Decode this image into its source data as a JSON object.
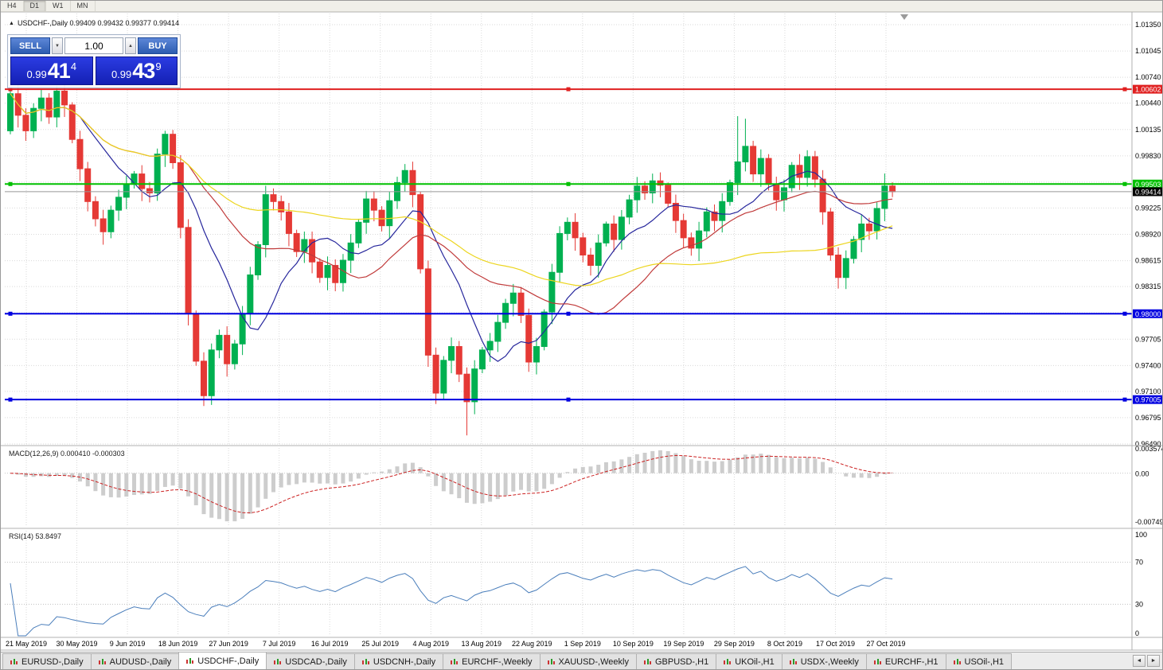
{
  "icons": {
    "symbol_marker": "▲",
    "spin_down": "▼",
    "spin_up": "▲",
    "scroll_left": "◄",
    "scroll_right": "►"
  },
  "toolbar": {
    "timeframes": [
      "H4",
      "D1",
      "W1",
      "MN"
    ],
    "active": "D1"
  },
  "chart_header": {
    "symbol_line": "USDCHF-,Daily 0.99409 0.99432 0.99377 0.99414"
  },
  "trade_panel": {
    "sell_label": "SELL",
    "buy_label": "BUY",
    "volume": "1.00",
    "bid": {
      "prefix": "0.99",
      "big": "41",
      "sup": "4"
    },
    "ask": {
      "prefix": "0.99",
      "big": "43",
      "sup": "9"
    }
  },
  "chart_data": {
    "type": "candlestick",
    "symbol": "USDCHF",
    "timeframe": "Daily",
    "ohlc_display": {
      "open": 0.99409,
      "high": 0.99432,
      "low": 0.99377,
      "close": 0.99414
    },
    "style": {
      "bull": "#00b050",
      "bear": "#e53935",
      "grid": "#dadada",
      "frame": "#b0b0b0",
      "histogram": "#cdcdcd",
      "signal": "#cc2222",
      "rsi_line": "#4a7ebb",
      "current_line": "#999999"
    },
    "price_axis": [
      {
        "value": 1.0135,
        "label": "1.01350"
      },
      {
        "value": 1.01045,
        "label": "1.01045"
      },
      {
        "value": 1.0074,
        "label": "1.00740"
      },
      {
        "value": 1.0044,
        "label": "1.00440"
      },
      {
        "value": 1.00135,
        "label": "1.00135"
      },
      {
        "value": 0.9983,
        "label": "0.99830"
      },
      {
        "value": 0.99525,
        "label": ""
      },
      {
        "value": 0.99225,
        "label": "0.99225"
      },
      {
        "value": 0.9892,
        "label": "0.98920"
      },
      {
        "value": 0.98615,
        "label": "0.98615"
      },
      {
        "value": 0.98315,
        "label": "0.98315"
      },
      {
        "value": 0.9801,
        "label": "0.98010"
      },
      {
        "value": 0.97705,
        "label": "0.97705"
      },
      {
        "value": 0.974,
        "label": "0.97400"
      },
      {
        "value": 0.971,
        "label": "0.97100"
      },
      {
        "value": 0.96795,
        "label": "0.96795"
      },
      {
        "value": 0.9649,
        "label": "0.96490"
      }
    ],
    "x_labels": [
      "21 May 2019",
      "30 May 2019",
      "9 Jun 2019",
      "18 Jun 2019",
      "27 Jun 2019",
      "7 Jul 2019",
      "16 Jul 2019",
      "25 Jul 2019",
      "4 Aug 2019",
      "13 Aug 2019",
      "22 Aug 2019",
      "1 Sep 2019",
      "10 Sep 2019",
      "19 Sep 2019",
      "29 Sep 2019",
      "8 Oct 2019",
      "17 Oct 2019",
      "27 Oct 2019"
    ],
    "first_open": 1.0012,
    "closes": [
      1.0055,
      1.003,
      1.0012,
      1.0038,
      1.005,
      1.0028,
      1.0058,
      1.0042,
      1.0002,
      0.9968,
      0.993,
      0.991,
      0.9895,
      0.992,
      0.9935,
      0.995,
      0.9962,
      0.9945,
      0.994,
      0.9985,
      1.0008,
      0.9975,
      0.99,
      0.98,
      0.9745,
      0.9705,
      0.9758,
      0.9775,
      0.9742,
      0.9765,
      0.98,
      0.9845,
      0.988,
      0.9938,
      0.993,
      0.9918,
      0.9893,
      0.9872,
      0.9886,
      0.986,
      0.9842,
      0.9856,
      0.9836,
      0.9862,
      0.9882,
      0.9906,
      0.9933,
      0.992,
      0.9902,
      0.9931,
      0.9952,
      0.9966,
      0.9938,
      0.9852,
      0.9752,
      0.9708,
      0.9746,
      0.9762,
      0.973,
      0.9698,
      0.9736,
      0.9758,
      0.9768,
      0.979,
      0.9812,
      0.9824,
      0.9798,
      0.9744,
      0.9762,
      0.9802,
      0.9848,
      0.9893,
      0.9906,
      0.9888,
      0.9868,
      0.9856,
      0.9882,
      0.9904,
      0.9886,
      0.9912,
      0.9932,
      0.9948,
      0.994,
      0.9954,
      0.9949,
      0.9928,
      0.9908,
      0.9888,
      0.9876,
      0.9896,
      0.9918,
      0.9908,
      0.993,
      0.9952,
      0.9976,
      0.9994,
      0.9962,
      0.998,
      0.995,
      0.9932,
      0.9946,
      0.9972,
      0.9958,
      0.9982,
      0.9956,
      0.9918,
      0.9868,
      0.9842,
      0.9864,
      0.9886,
      0.9904,
      0.9896,
      0.9922,
      0.9948,
      0.99414
    ],
    "wick_extremes": {
      "0": {
        "h": 1.00615
      },
      "6": {
        "h": 1.0064
      },
      "20": {
        "h": 1.0012
      },
      "25": {
        "l": 0.9693
      },
      "59": {
        "l": 0.9659
      },
      "94": {
        "h": 1.0029
      },
      "95": {
        "h": 1.0026
      },
      "102": {
        "h": 0.9985
      },
      "113": {
        "h": 0.99625
      }
    },
    "moving_averages": [
      {
        "period": 10,
        "color": "#26269c"
      },
      {
        "period": 24,
        "color": "#c03a3a"
      },
      {
        "period": 52,
        "color": "#ecd51e"
      }
    ],
    "levels": [
      {
        "value": 1.00602,
        "label": "1.00602",
        "color": "#e02020"
      },
      {
        "value": 0.99503,
        "label": "0.99503",
        "color": "#00c000"
      },
      {
        "value": 0.98,
        "label": "0.98000",
        "color": "#0000e0"
      },
      {
        "value": 0.97005,
        "label": "0.97005",
        "color": "#0000e0"
      }
    ],
    "current_price": {
      "value": 0.99414,
      "label": "0.99414"
    }
  },
  "macd": {
    "label": "MACD(12,26,9) 0.000410 -0.000303",
    "params": [
      12,
      26,
      9
    ],
    "axis": {
      "max": 0.003574,
      "min": -0.00749,
      "labels": [
        {
          "value": 0.003574,
          "label": "0.003574"
        },
        {
          "value": 0,
          "label": "0.00"
        },
        {
          "value": -0.00749,
          "label": "-0.00749"
        }
      ]
    }
  },
  "rsi": {
    "label": "RSI(14) 53.8497",
    "period": 14,
    "value": 53.8497,
    "axis": [
      {
        "value": 100,
        "label": "100"
      },
      {
        "value": 70,
        "label": "70"
      },
      {
        "value": 30,
        "label": "30"
      },
      {
        "value": 0,
        "label": "0"
      }
    ],
    "guide_levels": [
      70,
      30
    ]
  },
  "tabs": {
    "items": [
      "EURUSD-,Daily",
      "AUDUSD-,Daily",
      "USDCHF-,Daily",
      "USDCAD-,Daily",
      "USDCNH-,Daily",
      "EURCHF-,Weekly",
      "XAUUSD-,Weekly",
      "GBPUSD-,H1",
      "UKOil-,H1",
      "USDX-,Weekly",
      "EURCHF-,H1",
      "USOil-,H1"
    ],
    "active_index": 2
  }
}
